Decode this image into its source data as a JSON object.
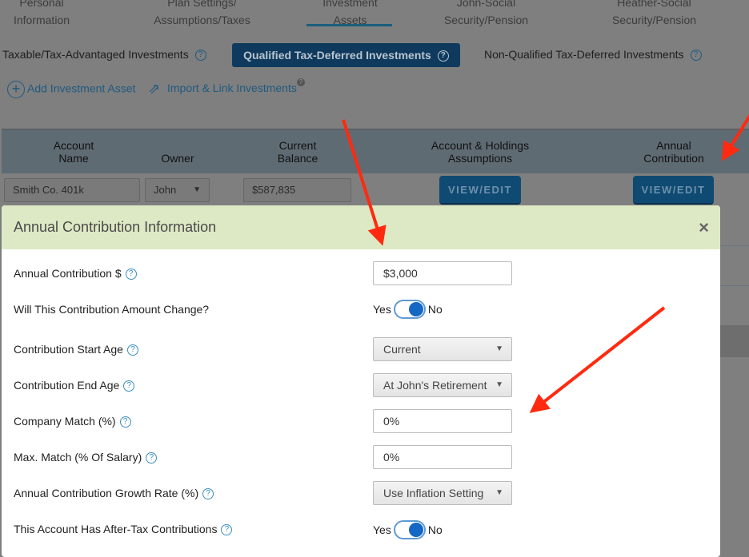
{
  "nav_tabs": [
    {
      "label": "Personal\nInformation"
    },
    {
      "label": "Plan Settings/\nAssumptions/Taxes"
    },
    {
      "label": "Investment\nAssets",
      "active": true
    },
    {
      "label": "John-Social\nSecurity/Pension"
    },
    {
      "label": "Heather-Social\nSecurity/Pension"
    }
  ],
  "sub_tabs": {
    "taxable": "Taxable/Tax-Advantaged Investments",
    "qualified": "Qualified Tax-Deferred Investments",
    "non_qualified": "Non-Qualified Tax-Deferred Investments"
  },
  "actions": {
    "add": "Add Investment Asset",
    "import": "Import & Link Investments"
  },
  "table": {
    "headers": [
      "Account\nName",
      "Owner",
      "Current\nBalance",
      "Account & Holdings\nAssumptions",
      "Annual\nContribution"
    ],
    "row": {
      "account_name": "Smith Co. 401k",
      "owner": "John",
      "balance": "$587,835",
      "holdings_button": "VIEW/EDIT",
      "contribution_button": "VIEW/EDIT"
    }
  },
  "modal": {
    "title": "Annual Contribution Information",
    "close": "×",
    "fields": [
      {
        "label": "Annual Contribution $",
        "value": "$3,000",
        "help": true
      },
      {
        "label": "Will This Contribution Amount Change?",
        "yes": "Yes",
        "no": "No",
        "toggle": "No"
      },
      {
        "label": "Contribution Start Age",
        "value": "Current",
        "help": true
      },
      {
        "label": "Contribution End Age",
        "value": "At John's Retirement",
        "help": true
      },
      {
        "label": "Company Match (%)",
        "value": "0%",
        "help": true
      },
      {
        "label": "Max. Match (% Of Salary)",
        "value": "0%",
        "help": true
      },
      {
        "label": "Annual Contribution Growth Rate (%)",
        "value": "Use Inflation Setting",
        "help": true
      },
      {
        "label": "This Account Has After-Tax Contributions",
        "yes": "Yes",
        "no": "No",
        "toggle": "No",
        "help": true
      }
    ]
  },
  "help_glyph": "?",
  "colors": {
    "active_tab": "#0f3a5e",
    "modal_header": "#dde9c4",
    "toggle": "#1467c4",
    "annotation_arrow": "#ff2a10"
  }
}
